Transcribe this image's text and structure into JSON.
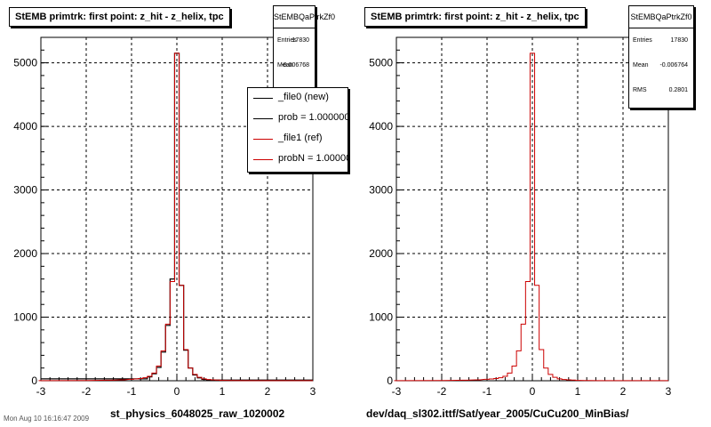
{
  "footer_text": "Mon Aug 10 16:16:47 2009",
  "legend": [
    {
      "label": "_file0 (new)",
      "color": "#000000"
    },
    {
      "label": "prob = 1.000000",
      "color": "#000000"
    },
    {
      "label": "_file1 (ref)",
      "color": "#cc0000"
    },
    {
      "label": "probN = 1.000000",
      "color": "#cc0000"
    }
  ],
  "chart_data": [
    {
      "type": "line",
      "title": "StEMB primtrk: first point: z_hit - z_helix, tpc",
      "xlabel": "st_physics_6048025_raw_1020002",
      "ylabel": "",
      "xlim": [
        -3,
        3
      ],
      "ylim": [
        0,
        5400
      ],
      "xticks": [
        "-3",
        "-2",
        "-1",
        "0",
        "1",
        "2",
        "3"
      ],
      "yticks": [
        "0",
        "1000",
        "2000",
        "3000",
        "4000",
        "5000"
      ],
      "grid": true,
      "stats": {
        "name": "StEMBQaPtrkZf0",
        "entries": "17830",
        "mean": "-0.006768"
      },
      "series": [
        {
          "name": "_file0 (new)",
          "color": "#000000",
          "x": [
            -0.7,
            -0.6,
            -0.5,
            -0.4,
            -0.3,
            -0.2,
            -0.1,
            0.0,
            0.1,
            0.2,
            0.3,
            0.4,
            0.5,
            0.6,
            0.7
          ],
          "values": [
            30,
            60,
            110,
            210,
            450,
            870,
            1600,
            5150,
            1500,
            480,
            200,
            90,
            45,
            20,
            10
          ]
        },
        {
          "name": "_file1 (ref)",
          "color": "#cc0000",
          "x": [
            -3.0,
            -2.0,
            -1.5,
            -1.2,
            -1.0,
            -0.9,
            -0.8,
            -0.7,
            -0.6,
            -0.5,
            -0.4,
            -0.3,
            -0.2,
            -0.1,
            0.0,
            0.1,
            0.2,
            0.3,
            0.4,
            0.5,
            0.6,
            0.7,
            0.8,
            0.9,
            1.0,
            1.2,
            1.5,
            2.0
          ],
          "values": [
            2,
            4,
            8,
            14,
            22,
            28,
            35,
            48,
            70,
            120,
            230,
            470,
            890,
            1560,
            5150,
            1500,
            490,
            200,
            100,
            55,
            30,
            20,
            14,
            10,
            6,
            4,
            2,
            2
          ]
        }
      ]
    },
    {
      "type": "line",
      "title": "StEMB primtrk: first point: z_hit - z_helix, tpc",
      "xlabel": "dev/daq_sl302.ittf/Sat/year_2005/CuCu200_MinBias/",
      "ylabel": "",
      "xlim": [
        -3,
        3
      ],
      "ylim": [
        0,
        5400
      ],
      "xticks": [
        "-3",
        "-2",
        "-1",
        "0",
        "1",
        "2",
        "3"
      ],
      "yticks": [
        "0",
        "1000",
        "2000",
        "3000",
        "4000",
        "5000"
      ],
      "grid": true,
      "stats": {
        "name": "StEMBQaPtrkZf0",
        "entries": "17830",
        "mean": "-0.006764",
        "rms": "0.2801"
      },
      "series": [
        {
          "name": "",
          "color": "#cc0000",
          "x": [
            -3.0,
            -2.0,
            -1.5,
            -1.2,
            -1.0,
            -0.9,
            -0.8,
            -0.7,
            -0.6,
            -0.5,
            -0.4,
            -0.3,
            -0.2,
            -0.1,
            0.0,
            0.1,
            0.2,
            0.3,
            0.4,
            0.5,
            0.6,
            0.7,
            0.8,
            0.9,
            1.0,
            1.2,
            1.5,
            2.0
          ],
          "values": [
            2,
            4,
            8,
            14,
            22,
            28,
            35,
            48,
            70,
            120,
            230,
            470,
            890,
            1560,
            5150,
            1500,
            490,
            200,
            100,
            55,
            30,
            20,
            14,
            10,
            6,
            4,
            2,
            2
          ]
        }
      ]
    }
  ]
}
